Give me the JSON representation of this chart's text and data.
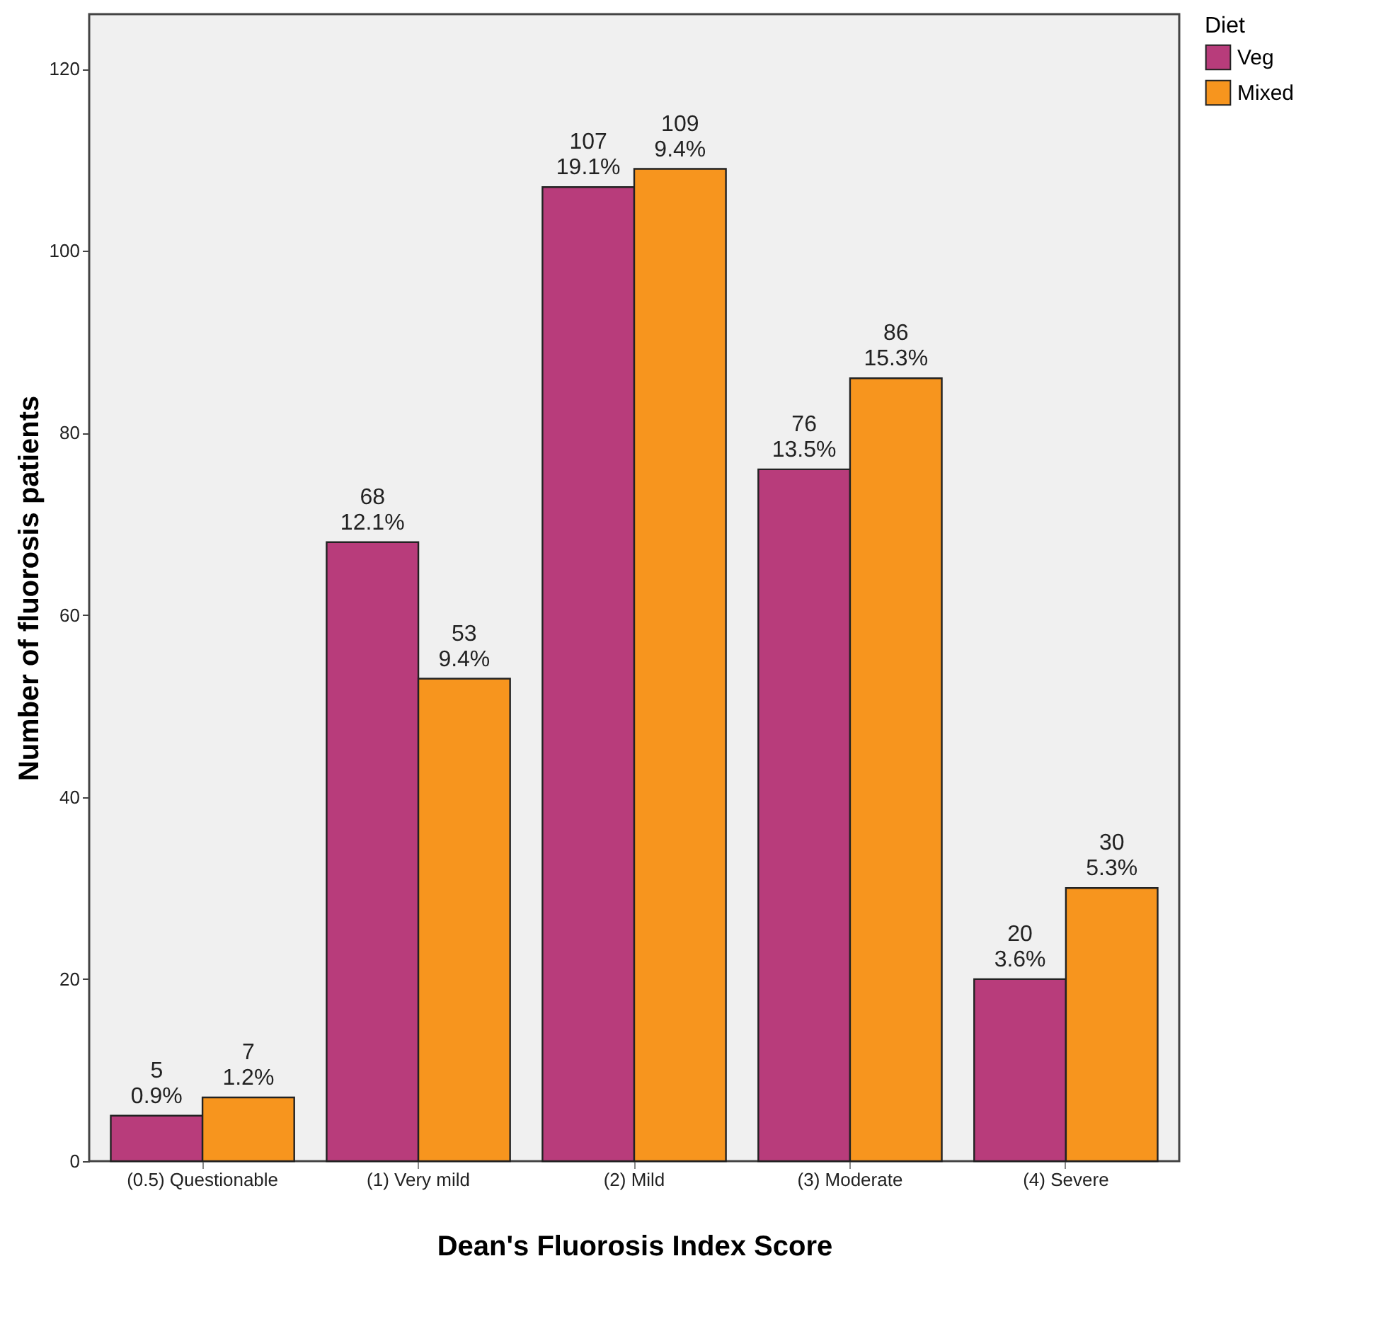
{
  "chart_data": {
    "type": "bar",
    "xlabel": "Dean's Fluorosis Index Score",
    "ylabel": "Number of fluorosis patients",
    "legend_title": "Diet",
    "legend": "top right",
    "grid": false,
    "categories": [
      "(0.5) Questionable",
      "(1) Very mild",
      "(2) Mild",
      "(3) Moderate",
      "(4) Severe"
    ],
    "ylim": [
      0,
      126
    ],
    "yticks": [
      0,
      20,
      40,
      60,
      80,
      100,
      120
    ],
    "series": [
      {
        "name": "Veg",
        "color": "#b83c7b",
        "values": [
          5,
          68,
          107,
          76,
          20
        ],
        "value_labels": [
          "5\n0.9%",
          "68\n12.1%",
          "107\n19.1%",
          "76\n13.5%",
          "20\n3.6%"
        ]
      },
      {
        "name": "Mixed",
        "color": "#f7951e",
        "values": [
          7,
          53,
          109,
          86,
          30
        ],
        "value_labels": [
          "7\n1.2%",
          "53\n9.4%",
          "109\n9.4%",
          "86\n15.3%",
          "30\n5.3%"
        ]
      }
    ]
  }
}
